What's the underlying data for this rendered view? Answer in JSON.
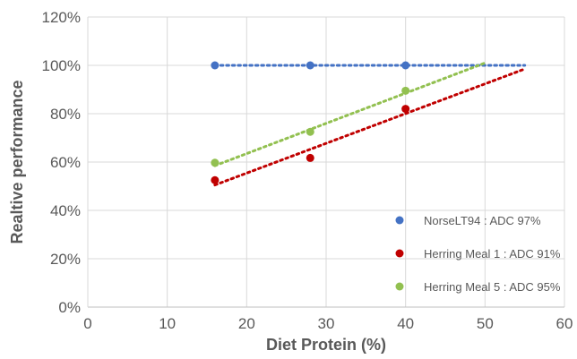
{
  "chart_data": {
    "type": "scatter",
    "title": "",
    "xlabel": "Diet Protein (%)",
    "ylabel": "Realtive performance",
    "xlim": [
      0,
      60
    ],
    "ylim": [
      0,
      1.2
    ],
    "x_ticks": [
      0,
      10,
      20,
      30,
      40,
      50,
      60
    ],
    "x_tick_labels": [
      "0",
      "10",
      "20",
      "30",
      "40",
      "50",
      "60"
    ],
    "y_ticks": [
      0,
      0.2,
      0.4,
      0.6,
      0.8,
      1.0,
      1.2
    ],
    "y_tick_labels": [
      "0%",
      "20%",
      "40%",
      "60%",
      "80%",
      "100%",
      "120%"
    ],
    "grid": true,
    "legend_position": "bottom-right",
    "series": [
      {
        "name": "NorseLT94 : ADC 97%",
        "color": "#4472c4",
        "x": [
          16,
          28,
          40
        ],
        "y": [
          1.0,
          1.0,
          1.0
        ],
        "trendline": {
          "x": [
            16,
            55
          ],
          "y": [
            1.0,
            1.0
          ]
        }
      },
      {
        "name": "Herring Meal 1 : ADC 91%",
        "color": "#c00000",
        "x": [
          16,
          28,
          40
        ],
        "y": [
          0.525,
          0.617,
          0.82
        ],
        "trendline": {
          "x": [
            16,
            55
          ],
          "y": [
            0.505,
            0.985
          ]
        }
      },
      {
        "name": "Herring Meal 5 : ADC 95%",
        "color": "#92c050",
        "x": [
          16,
          28,
          40
        ],
        "y": [
          0.597,
          0.725,
          0.895
        ],
        "trendline": {
          "x": [
            16,
            50
          ],
          "y": [
            0.585,
            1.01
          ]
        }
      }
    ]
  }
}
